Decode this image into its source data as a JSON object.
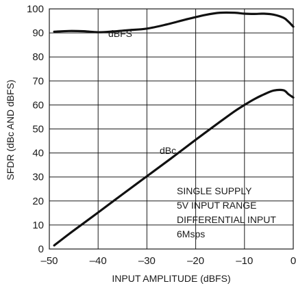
{
  "chart_data": {
    "type": "line",
    "title": "",
    "xlabel": "INPUT AMPLITUDE (dBFS)",
    "ylabel": "SFDR (dBc AND dBFS)",
    "xlim": [
      -50,
      0
    ],
    "ylim": [
      0,
      100
    ],
    "x_ticks": [
      -50,
      -40,
      -30,
      -20,
      -10,
      0
    ],
    "x_tick_labels": [
      "–50",
      "–40",
      "–30",
      "–20",
      "–10",
      "0"
    ],
    "y_ticks": [
      0,
      10,
      20,
      30,
      40,
      50,
      60,
      70,
      80,
      90,
      100
    ],
    "y_tick_labels": [
      "0",
      "10",
      "20",
      "30",
      "40",
      "50",
      "60",
      "70",
      "80",
      "90",
      "100"
    ],
    "grid": true,
    "series": [
      {
        "name": "dBFS",
        "x": [
          -49,
          -46,
          -43,
          -40,
          -37,
          -34,
          -30,
          -26,
          -22,
          -18,
          -15,
          -12,
          -10,
          -8,
          -6,
          -4,
          -2,
          -1,
          0
        ],
        "y": [
          90.5,
          90.8,
          90.7,
          90.3,
          90.6,
          91.1,
          91.8,
          93.5,
          95.6,
          97.5,
          98.4,
          98.4,
          98.0,
          97.9,
          98.0,
          97.6,
          96.3,
          94.7,
          92.6
        ]
      },
      {
        "name": "dBc",
        "x": [
          -49,
          -46,
          -43,
          -40,
          -35,
          -30,
          -25,
          -20,
          -15,
          -12,
          -10,
          -8,
          -6,
          -4,
          -2,
          -1,
          0
        ],
        "y": [
          1.5,
          6.2,
          10.7,
          15.2,
          22.8,
          30.3,
          37.8,
          45.5,
          53.0,
          57.4,
          60.0,
          62.4,
          64.4,
          66.0,
          66.1,
          64.5,
          63.1
        ]
      }
    ],
    "annotations": [
      "SINGLE SUPPLY",
      "5V INPUT RANGE",
      "DIFFERENTIAL INPUT",
      "6Msps"
    ]
  }
}
